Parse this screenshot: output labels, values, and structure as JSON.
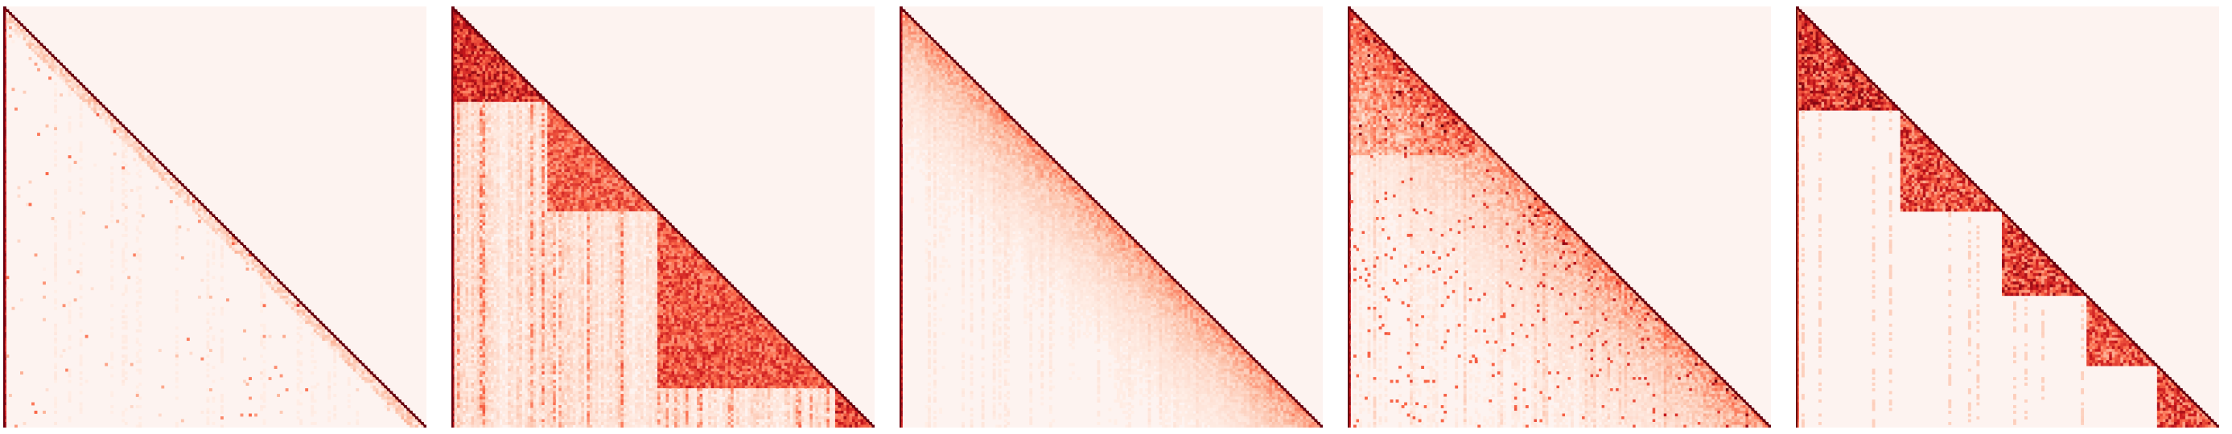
{
  "figure": {
    "description_visible_text": ""
  },
  "colors": {
    "background": "#fdf3f0",
    "colormap": [
      "#fff5f0",
      "#fcbba1",
      "#fb6a4a",
      "#cb181d",
      "#67000d"
    ]
  },
  "chart_data": [
    {
      "type": "heatmap",
      "title": "",
      "xlabel": "",
      "ylabel": "",
      "mask": "lower-triangular",
      "axes_visible": false,
      "colorbar": false,
      "density_pattern": "sparse",
      "diagonal_intensity": 1.0,
      "first_column_intensity": 0.9,
      "overall_intensity": 0.12,
      "blocks": []
    },
    {
      "type": "heatmap",
      "title": "",
      "xlabel": "",
      "ylabel": "",
      "mask": "lower-triangular",
      "axes_visible": false,
      "colorbar": false,
      "density_pattern": "banded-dense",
      "diagonal_intensity": 1.0,
      "first_column_intensity": 0.95,
      "overall_intensity": 0.55,
      "blocks": [
        {
          "start": 0.0,
          "end": 0.22,
          "intensity": 0.9
        },
        {
          "start": 0.22,
          "end": 0.48,
          "intensity": 0.7
        },
        {
          "start": 0.48,
          "end": 0.9,
          "intensity": 0.75
        },
        {
          "start": 0.9,
          "end": 1.0,
          "intensity": 0.85
        }
      ]
    },
    {
      "type": "heatmap",
      "title": "",
      "xlabel": "",
      "ylabel": "",
      "mask": "lower-triangular",
      "axes_visible": false,
      "colorbar": false,
      "density_pattern": "diagonal-band",
      "diagonal_intensity": 1.0,
      "first_column_intensity": 0.9,
      "overall_intensity": 0.22,
      "blocks": []
    },
    {
      "type": "heatmap",
      "title": "",
      "xlabel": "",
      "ylabel": "",
      "mask": "lower-triangular",
      "axes_visible": false,
      "colorbar": false,
      "density_pattern": "scattered-medium",
      "diagonal_intensity": 1.0,
      "first_column_intensity": 0.9,
      "overall_intensity": 0.35,
      "blocks": [
        {
          "start": 0.0,
          "end": 0.3,
          "intensity": 0.7
        }
      ]
    },
    {
      "type": "heatmap",
      "title": "",
      "xlabel": "",
      "ylabel": "",
      "mask": "lower-triangular",
      "axes_visible": false,
      "colorbar": false,
      "density_pattern": "block-diagonal",
      "diagonal_intensity": 1.0,
      "first_column_intensity": 0.6,
      "overall_intensity": 0.15,
      "blocks": [
        {
          "start": 0.0,
          "end": 0.24,
          "intensity": 0.95
        },
        {
          "start": 0.24,
          "end": 0.48,
          "intensity": 0.85
        },
        {
          "start": 0.48,
          "end": 0.68,
          "intensity": 0.9
        },
        {
          "start": 0.68,
          "end": 0.85,
          "intensity": 0.8
        },
        {
          "start": 0.85,
          "end": 1.0,
          "intensity": 0.85
        }
      ]
    }
  ]
}
